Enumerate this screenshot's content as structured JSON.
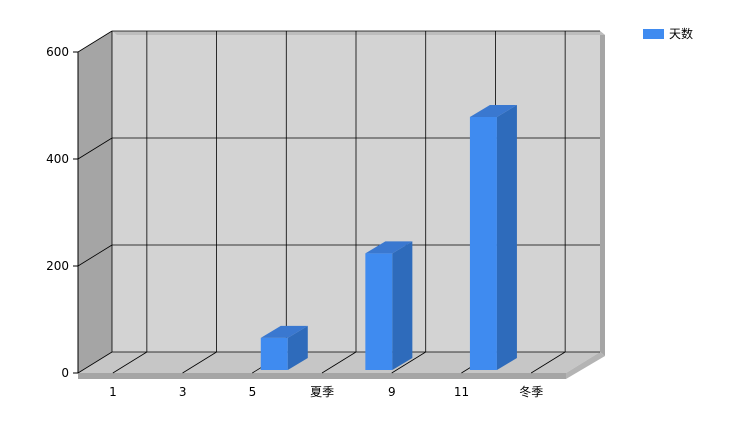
{
  "chart_data": {
    "type": "bar",
    "categories": [
      "1",
      "3",
      "5",
      "夏季",
      "9",
      "11",
      "冬季"
    ],
    "series": [
      {
        "name": "天数",
        "values": [
          0,
          0,
          60,
          218,
          473,
          0,
          22
        ],
        "color": "#3f8bf0"
      }
    ],
    "bar_positions": [
      2.5,
      4.0,
      5.5
    ],
    "bar_values": [
      60,
      218,
      473
    ],
    "ylim": [
      0,
      600
    ],
    "yticks": [
      0,
      200,
      400,
      600
    ],
    "title": "",
    "xlabel": "",
    "ylabel": "",
    "grid": true,
    "legend_position": "top-right",
    "style": "3d",
    "colors": {
      "bar_front": "#3f8bf0",
      "bar_side": "#2e6bbb",
      "bar_top": "#3a78d0",
      "back_wall": "#d3d3d3",
      "left_wall": "#a5a5a5",
      "floor": "#c6c6c6",
      "frame": "#a5a5a5"
    }
  }
}
